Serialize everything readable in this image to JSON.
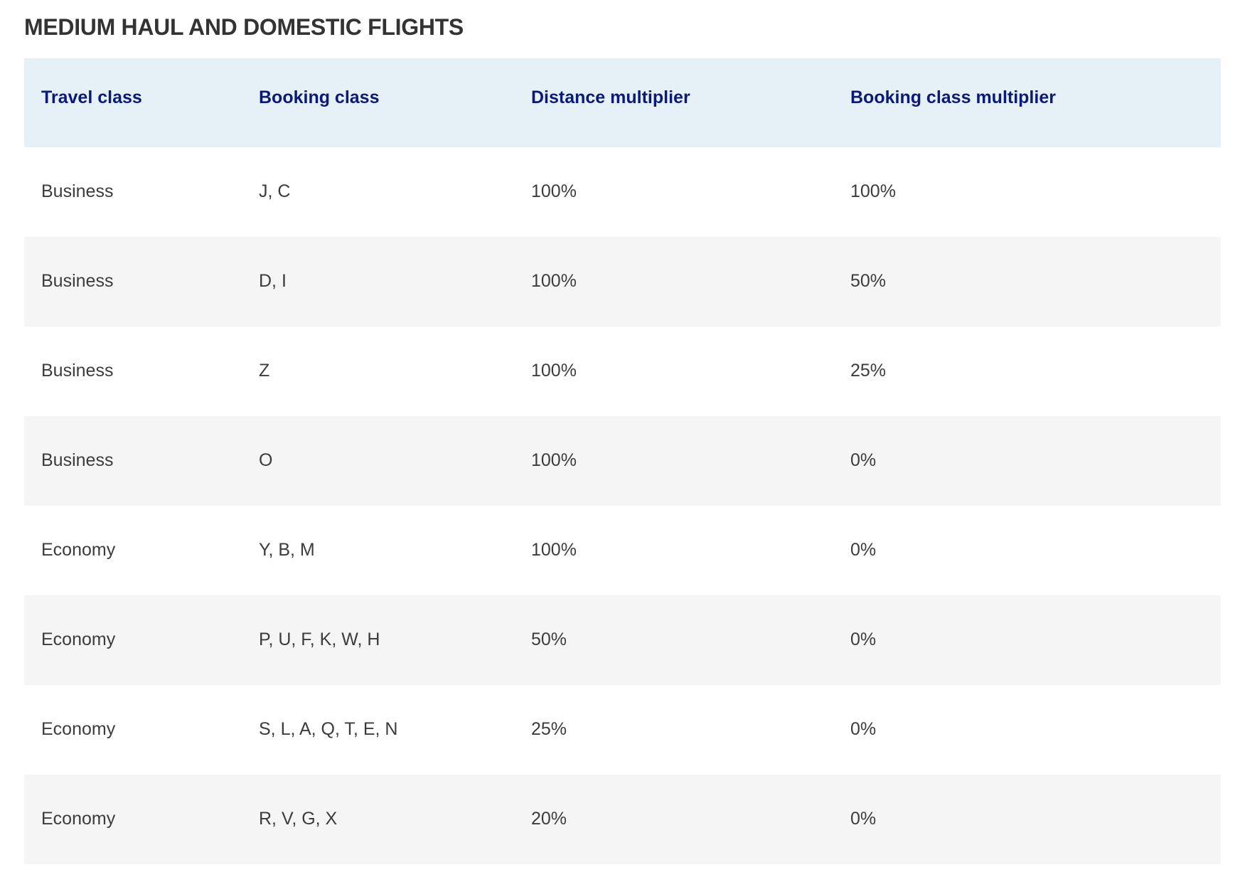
{
  "section": {
    "title": "MEDIUM HAUL AND DOMESTIC FLIGHTS"
  },
  "table": {
    "columns": [
      "Travel class",
      "Booking class",
      "Distance multiplier",
      "Booking class multiplier"
    ],
    "rows": [
      [
        "Business",
        "J, C",
        "100%",
        "100%"
      ],
      [
        "Business",
        "D, I",
        "100%",
        "50%"
      ],
      [
        "Business",
        "Z",
        "100%",
        "25%"
      ],
      [
        "Business",
        "O",
        "100%",
        "0%"
      ],
      [
        "Economy",
        "Y, B, M",
        "100%",
        "0%"
      ],
      [
        "Economy",
        "P, U, F, K, W, H",
        "50%",
        "0%"
      ],
      [
        "Economy",
        "S, L, A, Q, T, E, N",
        "25%",
        "0%"
      ],
      [
        "Economy",
        "R, V, G, X",
        "20%",
        "0%"
      ]
    ]
  },
  "colors": {
    "header_background": "#e6f0f7",
    "header_text": "#0b1a78",
    "striped_row_background": "#f5f5f5",
    "body_text": "#3c3c3c"
  }
}
